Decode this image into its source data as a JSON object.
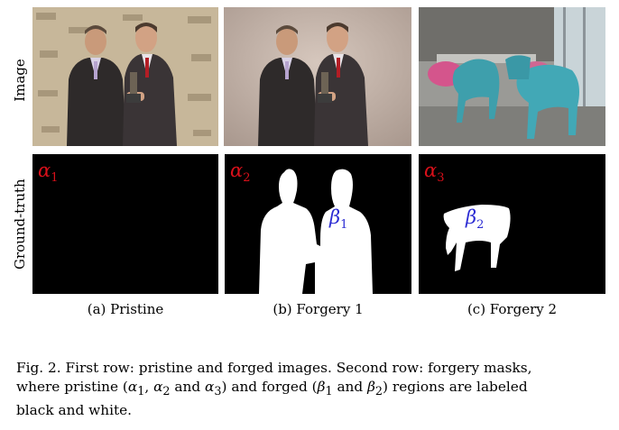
{
  "row_labels": {
    "image": "Image",
    "ground_truth": "Ground-truth"
  },
  "panels": [
    {
      "subcaption": "(a) Pristine",
      "region_label": "α",
      "region_sub": "1"
    },
    {
      "subcaption": "(b) Forgery 1",
      "region_label": "α",
      "region_sub": "2",
      "forged_label": "β",
      "forged_sub": "1"
    },
    {
      "subcaption": "(c) Forgery 2",
      "region_label": "α",
      "region_sub": "3",
      "forged_label": "β",
      "forged_sub": "2"
    }
  ],
  "caption": {
    "line1": "Fig. 2.   First row: pristine and forged images. Second row: forgery masks,",
    "line2_a": "where pristine (",
    "a1": "α",
    "a1_sub": "1",
    "sep1": ", ",
    "a2": "α",
    "a2_sub": "2",
    "sep2": " and ",
    "a3": "α",
    "a3_sub": "3",
    "line2_b": ") and forged (",
    "b1": "β",
    "b1_sub": "1",
    "sep3": " and ",
    "b2": "β",
    "b2_sub": "2",
    "line2_c": ") regions are labeled",
    "line3": "black and white."
  },
  "colors": {
    "alpha": "#d8101a",
    "beta": "#2b2bd3",
    "mask_bg": "#000000",
    "mask_fg": "#ffffff"
  }
}
